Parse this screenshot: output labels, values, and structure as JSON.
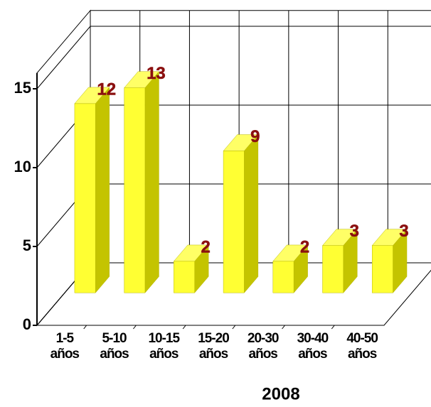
{
  "chart_data": {
    "type": "bar3d",
    "categories": [
      "1-5 años",
      "5-10 años",
      "10-15 años",
      "15-20 años",
      "20-30 años",
      "30-40 años",
      "40-50 años"
    ],
    "values": [
      12,
      13,
      2,
      9,
      2,
      3,
      3
    ],
    "color": "#ffff33",
    "label_color": "#8b1010",
    "x_label": "2008",
    "ylim": [
      0,
      16
    ],
    "yticks": [
      0,
      5,
      10,
      15
    ],
    "grid": true
  }
}
